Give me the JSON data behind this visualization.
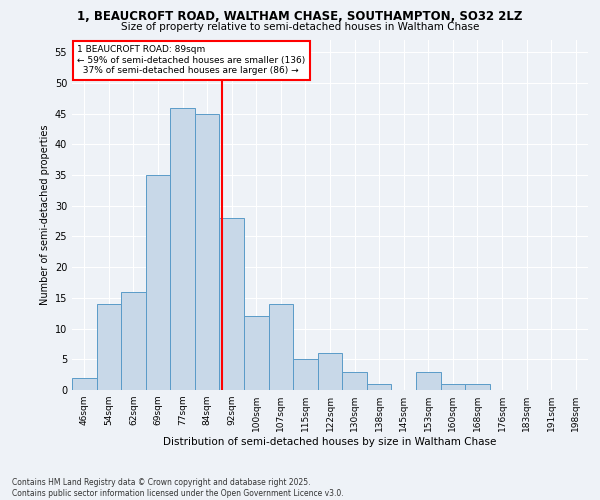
{
  "title1": "1, BEAUCROFT ROAD, WALTHAM CHASE, SOUTHAMPTON, SO32 2LZ",
  "title2": "Size of property relative to semi-detached houses in Waltham Chase",
  "xlabel": "Distribution of semi-detached houses by size in Waltham Chase",
  "ylabel": "Number of semi-detached properties",
  "footnote": "Contains HM Land Registry data © Crown copyright and database right 2025.\nContains public sector information licensed under the Open Government Licence v3.0.",
  "bar_labels": [
    "46sqm",
    "54sqm",
    "62sqm",
    "69sqm",
    "77sqm",
    "84sqm",
    "92sqm",
    "100sqm",
    "107sqm",
    "115sqm",
    "122sqm",
    "130sqm",
    "138sqm",
    "145sqm",
    "153sqm",
    "160sqm",
    "168sqm",
    "176sqm",
    "183sqm",
    "191sqm",
    "198sqm"
  ],
  "bar_values": [
    2,
    14,
    16,
    35,
    46,
    45,
    28,
    12,
    14,
    5,
    6,
    3,
    1,
    0,
    3,
    1,
    1,
    0,
    0,
    0,
    0
  ],
  "bar_color": "#c8d8e8",
  "bar_edge_color": "#5a9bc8",
  "vline_color": "red",
  "annotation_title": "1 BEAUCROFT ROAD: 89sqm",
  "annotation_line1": "← 59% of semi-detached houses are smaller (136)",
  "annotation_line2": "  37% of semi-detached houses are larger (86) →",
  "annotation_box_color": "white",
  "annotation_box_edge": "red",
  "ylim": [
    0,
    57
  ],
  "yticks": [
    0,
    5,
    10,
    15,
    20,
    25,
    30,
    35,
    40,
    45,
    50,
    55
  ],
  "background_color": "#eef2f7",
  "grid_color": "white"
}
